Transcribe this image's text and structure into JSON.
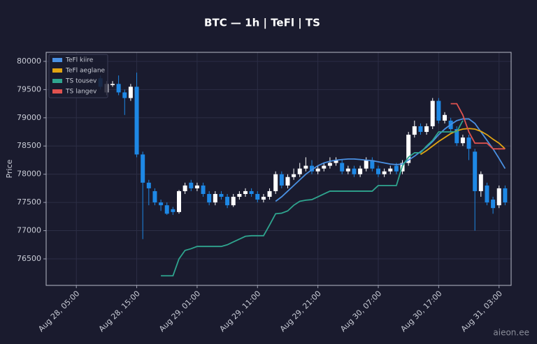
{
  "chart_data": {
    "type": "candlestick",
    "title": "BTC — 1h  |  TeFl  |  TS",
    "ylabel": "Price",
    "watermark": "aieon.ee",
    "up_color": "#ffffff",
    "down_color": "#1e88e5",
    "grid": true,
    "legend": "upper left",
    "x": [
      "Aug 28, 09:00",
      "Aug 28, 10:00",
      "Aug 28, 11:00",
      "Aug 28, 12:00",
      "Aug 28, 13:00",
      "Aug 28, 14:00",
      "Aug 28, 15:00",
      "Aug 28, 16:00",
      "Aug 28, 17:00",
      "Aug 28, 18:00",
      "Aug 28, 19:00",
      "Aug 28, 20:00",
      "Aug 28, 21:00",
      "Aug 28, 22:00",
      "Aug 28, 23:00",
      "Aug 29, 00:00",
      "Aug 29, 01:00",
      "Aug 29, 02:00",
      "Aug 29, 03:00",
      "Aug 29, 04:00",
      "Aug 29, 05:00",
      "Aug 29, 06:00",
      "Aug 29, 07:00",
      "Aug 29, 08:00",
      "Aug 29, 09:00",
      "Aug 29, 10:00",
      "Aug 29, 11:00",
      "Aug 29, 12:00",
      "Aug 29, 13:00",
      "Aug 29, 14:00",
      "Aug 29, 15:00",
      "Aug 29, 16:00",
      "Aug 29, 17:00",
      "Aug 29, 18:00",
      "Aug 29, 19:00",
      "Aug 29, 20:00",
      "Aug 29, 21:00",
      "Aug 29, 22:00",
      "Aug 29, 23:00",
      "Aug 30, 00:00",
      "Aug 30, 01:00",
      "Aug 30, 02:00",
      "Aug 30, 03:00",
      "Aug 30, 04:00",
      "Aug 30, 05:00",
      "Aug 30, 06:00",
      "Aug 30, 07:00",
      "Aug 30, 08:00",
      "Aug 30, 09:00",
      "Aug 30, 10:00",
      "Aug 30, 11:00",
      "Aug 30, 12:00",
      "Aug 30, 13:00",
      "Aug 30, 14:00",
      "Aug 30, 15:00",
      "Aug 30, 16:00",
      "Aug 30, 17:00",
      "Aug 30, 18:00",
      "Aug 30, 19:00",
      "Aug 30, 20:00",
      "Aug 30, 21:00",
      "Aug 30, 22:00",
      "Aug 30, 23:00",
      "Aug 31, 00:00",
      "Aug 31, 01:00",
      "Aug 31, 02:00",
      "Aug 31, 03:00",
      "Aug 31, 04:00"
    ],
    "open": [
      79700,
      79450,
      79580,
      79600,
      79450,
      79350,
      79550,
      78350,
      77850,
      77700,
      77500,
      77450,
      77380,
      77330,
      77700,
      77850,
      77750,
      77800,
      77650,
      77500,
      77650,
      77600,
      77450,
      77600,
      77650,
      77700,
      77650,
      77550,
      77600,
      77700,
      78000,
      77800,
      77950,
      78000,
      78100,
      78150,
      78050,
      78100,
      78150,
      78200,
      78200,
      78050,
      78100,
      78000,
      78100,
      78250,
      78100,
      78000,
      78050,
      78150,
      78050,
      78200,
      78700,
      78850,
      78750,
      78850,
      79300,
      78950,
      78950,
      78800,
      78550,
      78650,
      78400,
      77700,
      77800,
      77550,
      77450,
      77750
    ],
    "high": [
      79750,
      79650,
      79650,
      79750,
      79500,
      79600,
      79800,
      78400,
      77900,
      77750,
      77550,
      77500,
      77420,
      77720,
      77850,
      77900,
      77850,
      77850,
      77700,
      77700,
      77700,
      77650,
      77650,
      77700,
      77750,
      77750,
      77700,
      77650,
      77750,
      78050,
      78050,
      78000,
      78100,
      78200,
      78300,
      78250,
      78150,
      78200,
      78300,
      78300,
      78250,
      78150,
      78150,
      78150,
      78300,
      78300,
      78150,
      78100,
      78150,
      78200,
      78250,
      78750,
      78950,
      78900,
      78900,
      79350,
      79350,
      79100,
      79000,
      78850,
      78700,
      78700,
      78450,
      78050,
      77850,
      77600,
      77800,
      77800
    ],
    "low": [
      79500,
      79400,
      79550,
      79400,
      79050,
      79300,
      78300,
      76850,
      77450,
      77450,
      77350,
      77280,
      77280,
      77300,
      77650,
      77700,
      77700,
      77600,
      77450,
      77450,
      77550,
      77400,
      77420,
      77550,
      77600,
      77600,
      77500,
      77500,
      77550,
      77650,
      77750,
      77750,
      77900,
      77950,
      78050,
      78000,
      78000,
      78050,
      78100,
      78150,
      78000,
      78000,
      77950,
      77950,
      78050,
      78050,
      77950,
      77950,
      78000,
      78000,
      78000,
      78150,
      78650,
      78700,
      78700,
      78800,
      78900,
      78900,
      78750,
      78500,
      78500,
      78250,
      77000,
      77600,
      77450,
      77300,
      77400,
      77450
    ],
    "close": [
      79550,
      79600,
      79600,
      79450,
      79350,
      79550,
      78350,
      77850,
      77750,
      77500,
      77450,
      77300,
      77330,
      77700,
      77800,
      77750,
      77800,
      77650,
      77500,
      77650,
      77600,
      77450,
      77600,
      77650,
      77700,
      77650,
      77550,
      77600,
      77700,
      78000,
      77800,
      77950,
      78000,
      78100,
      78150,
      78050,
      78100,
      78150,
      78200,
      78250,
      78050,
      78100,
      78000,
      78100,
      78250,
      78100,
      78000,
      78050,
      78100,
      78050,
      78200,
      78700,
      78850,
      78750,
      78850,
      79300,
      78950,
      79050,
      78800,
      78550,
      78650,
      78450,
      77700,
      78000,
      77500,
      77400,
      77750,
      77500
    ],
    "series": [
      {
        "name": "TeFl kiire",
        "color": "#4a90e2",
        "values": [
          null,
          null,
          null,
          null,
          null,
          null,
          null,
          null,
          null,
          null,
          null,
          null,
          null,
          null,
          null,
          null,
          null,
          null,
          null,
          null,
          null,
          null,
          null,
          null,
          null,
          null,
          null,
          null,
          null,
          77520,
          77600,
          77700,
          77800,
          77900,
          78000,
          78080,
          78150,
          78200,
          78230,
          78250,
          78260,
          78270,
          78270,
          78260,
          78250,
          78240,
          78220,
          78200,
          78180,
          78170,
          78180,
          78250,
          78320,
          78400,
          78480,
          78580,
          78700,
          78800,
          78880,
          78950,
          78980,
          78980,
          78900,
          78750,
          78600,
          78450,
          78280,
          78100
        ]
      },
      {
        "name": "TeFl aeglane",
        "color": "#e0a412",
        "values": [
          null,
          null,
          null,
          null,
          null,
          null,
          null,
          null,
          null,
          null,
          null,
          null,
          null,
          null,
          null,
          null,
          null,
          null,
          null,
          null,
          null,
          null,
          null,
          null,
          null,
          null,
          null,
          null,
          null,
          null,
          null,
          null,
          null,
          null,
          null,
          null,
          null,
          null,
          null,
          null,
          null,
          null,
          null,
          null,
          null,
          null,
          null,
          null,
          null,
          null,
          null,
          null,
          null,
          78350,
          78420,
          78500,
          78580,
          78650,
          78720,
          78770,
          78800,
          78810,
          78800,
          78760,
          78700,
          78620,
          78550,
          78450
        ]
      },
      {
        "name": "TS tousev",
        "color": "#2fa58f",
        "values": [
          null,
          null,
          null,
          null,
          null,
          null,
          null,
          null,
          null,
          null,
          76200,
          76200,
          76200,
          76500,
          76650,
          76680,
          76720,
          76720,
          76720,
          76720,
          76720,
          76750,
          76800,
          76850,
          76900,
          76910,
          76910,
          76910,
          77100,
          77300,
          77310,
          77350,
          77450,
          77520,
          77540,
          77550,
          77600,
          77650,
          77700,
          77700,
          77700,
          77700,
          77700,
          77700,
          77700,
          77700,
          77800,
          77800,
          77800,
          77800,
          78150,
          78300,
          78380,
          78380,
          78500,
          78600,
          78750,
          78750,
          78750,
          78750,
          78950,
          null,
          null,
          null,
          null,
          null,
          null,
          null
        ]
      },
      {
        "name": "TS langev",
        "color": "#e0524f",
        "values": [
          null,
          null,
          null,
          null,
          null,
          null,
          null,
          null,
          null,
          null,
          null,
          null,
          null,
          null,
          null,
          null,
          null,
          null,
          null,
          null,
          null,
          null,
          null,
          null,
          null,
          null,
          null,
          null,
          null,
          null,
          null,
          null,
          null,
          null,
          null,
          null,
          null,
          null,
          null,
          null,
          null,
          null,
          null,
          null,
          null,
          null,
          null,
          null,
          null,
          null,
          null,
          null,
          null,
          null,
          null,
          null,
          null,
          null,
          79250,
          79250,
          79050,
          78750,
          78550,
          78550,
          78550,
          78450,
          78450,
          78450
        ]
      }
    ],
    "xlim": [
      "Aug 28, 00:00",
      "Aug 31, 05:00"
    ],
    "xticks": [
      "Aug 28, 05:00",
      "Aug 28, 15:00",
      "Aug 29, 01:00",
      "Aug 29, 11:00",
      "Aug 29, 21:00",
      "Aug 30, 07:00",
      "Aug 30, 17:00",
      "Aug 31, 03:00"
    ],
    "ylim": [
      76030,
      80160
    ],
    "yticks": [
      76500,
      77000,
      77500,
      78000,
      78500,
      79000,
      79500,
      80000
    ]
  }
}
